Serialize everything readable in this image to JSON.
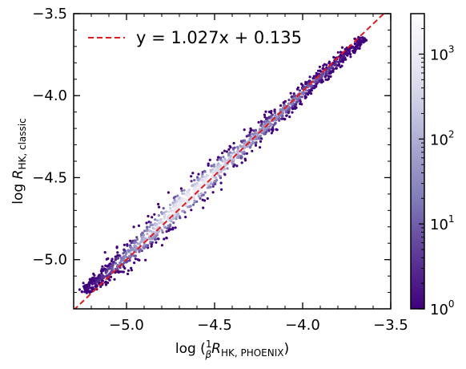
{
  "chart_data": {
    "type": "heatmap",
    "fit": {
      "slope": 1.027,
      "intercept": 0.135,
      "color": "#e31a1c",
      "style": "dashed"
    },
    "legend": {
      "entry_text": "y = 1.027x + 0.135",
      "placement": "top-left"
    },
    "xlabel": {
      "pre": "log (",
      "frac_num": "1",
      "frac_den": "β",
      "var": "R",
      "sub": "HK, PHOENIX",
      "post": ")"
    },
    "ylabel": {
      "pre": "log ",
      "var": "R",
      "sub": "HK, classic"
    },
    "xlim": [
      -5.3,
      -3.5
    ],
    "ylim": [
      -5.3,
      -3.5
    ],
    "xticks": [
      {
        "value": -5.0,
        "label": "−5.0"
      },
      {
        "value": -4.5,
        "label": "−4.5"
      },
      {
        "value": -4.0,
        "label": "−4.0"
      },
      {
        "value": -3.5,
        "label": "−3.5"
      }
    ],
    "yticks": [
      {
        "value": -3.5,
        "label": "−3.5"
      },
      {
        "value": -4.0,
        "label": "−4.0"
      },
      {
        "value": -4.5,
        "label": "−4.5"
      },
      {
        "value": -5.0,
        "label": "−5.0"
      }
    ],
    "density_ridge": [
      {
        "x": -5.25,
        "y": -5.2,
        "count": 1,
        "spread": 0.03
      },
      {
        "x": -5.15,
        "y": -5.12,
        "count": 3,
        "spread": 0.045
      },
      {
        "x": -5.05,
        "y": -5.03,
        "count": 15,
        "spread": 0.06
      },
      {
        "x": -4.95,
        "y": -4.93,
        "count": 60,
        "spread": 0.065
      },
      {
        "x": -4.85,
        "y": -4.83,
        "count": 200,
        "spread": 0.07
      },
      {
        "x": -4.75,
        "y": -4.72,
        "count": 600,
        "spread": 0.072
      },
      {
        "x": -4.65,
        "y": -4.62,
        "count": 1200,
        "spread": 0.07
      },
      {
        "x": -4.55,
        "y": -4.52,
        "count": 800,
        "spread": 0.065
      },
      {
        "x": -4.45,
        "y": -4.42,
        "count": 300,
        "spread": 0.06
      },
      {
        "x": -4.35,
        "y": -4.33,
        "count": 120,
        "spread": 0.055
      },
      {
        "x": -4.25,
        "y": -4.23,
        "count": 60,
        "spread": 0.05
      },
      {
        "x": -4.15,
        "y": -4.13,
        "count": 40,
        "spread": 0.05
      },
      {
        "x": -4.05,
        "y": -4.03,
        "count": 25,
        "spread": 0.045
      },
      {
        "x": -3.95,
        "y": -3.93,
        "count": 12,
        "spread": 0.04
      },
      {
        "x": -3.85,
        "y": -3.84,
        "count": 5,
        "spread": 0.035
      },
      {
        "x": -3.75,
        "y": -3.74,
        "count": 2,
        "spread": 0.03
      },
      {
        "x": -3.65,
        "y": -3.65,
        "count": 1,
        "spread": 0.025
      }
    ],
    "colorbar": {
      "scale": "log",
      "range": [
        1,
        3000
      ],
      "colormap": [
        "#3f007d",
        "#54278f",
        "#6a51a3",
        "#807dba",
        "#9e9ac8",
        "#bcbddc",
        "#dadaeb",
        "#efedf5",
        "#fcfbfd"
      ],
      "ticks": [
        {
          "value": 1,
          "label_base": "10",
          "label_exp": "0"
        },
        {
          "value": 10,
          "label_base": "10",
          "label_exp": "1"
        },
        {
          "value": 100,
          "label_base": "10",
          "label_exp": "2"
        },
        {
          "value": 1000,
          "label_base": "10",
          "label_exp": "3"
        }
      ]
    },
    "grid": false
  }
}
